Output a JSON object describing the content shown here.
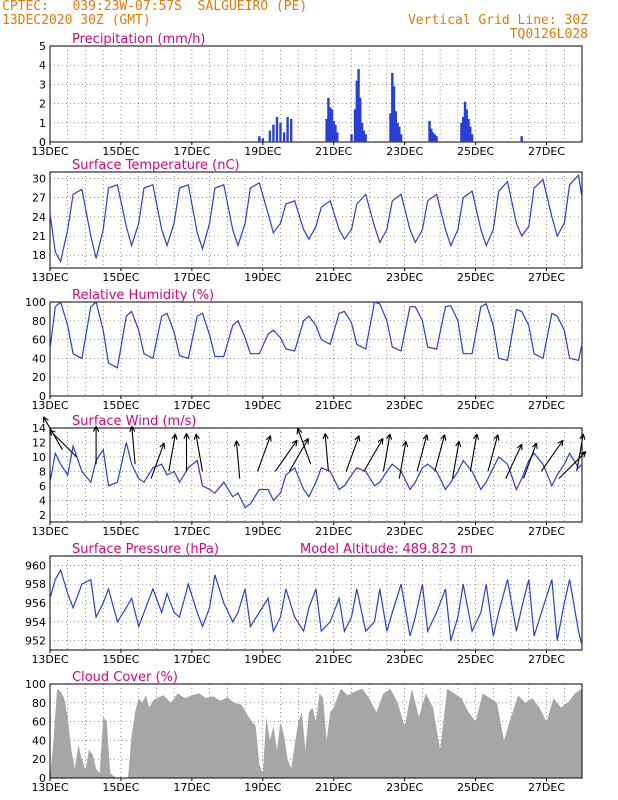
{
  "header": {
    "line1_left": "CPTEC:   039:23W-07:57S  SALGUEIRO (PE)",
    "line2_left": "13DEC2020 30Z (GMT)",
    "line1_right": "Vertical Grid Line: 30Z",
    "line2_right": "TQ0126L028"
  },
  "colors": {
    "accent": "#e8780a",
    "title": "#e0007a",
    "series": "#2a3fd6",
    "cloud": "#a6a6a6",
    "grid": "#555555"
  },
  "chart_data": [
    {
      "id": "precip",
      "type": "bar",
      "title": "Precipitation (mm/h)",
      "ylim": [
        0,
        5
      ],
      "yticks": [
        0,
        1,
        2,
        3,
        4,
        5
      ],
      "xlim": [
        13,
        28
      ],
      "xticks": [
        "13DEC",
        "15DEC",
        "17DEC",
        "19DEC",
        "21DEC",
        "23DEC",
        "25DEC",
        "27DEC"
      ],
      "x": [
        18.9,
        19.0,
        19.2,
        19.3,
        19.4,
        19.5,
        19.6,
        19.7,
        19.8,
        20.8,
        20.85,
        20.9,
        20.95,
        21.0,
        21.05,
        21.1,
        21.5,
        21.6,
        21.65,
        21.7,
        21.75,
        21.8,
        21.85,
        21.9,
        22.6,
        22.65,
        22.7,
        22.75,
        22.8,
        22.85,
        22.9,
        23.7,
        23.75,
        23.8,
        23.85,
        23.9,
        24.6,
        24.65,
        24.7,
        24.75,
        24.8,
        24.85,
        24.9,
        26.3
      ],
      "values": [
        0.3,
        0.2,
        0.6,
        0.9,
        1.3,
        1.0,
        0.5,
        1.3,
        1.2,
        1.2,
        2.3,
        1.8,
        1.7,
        1.1,
        0.9,
        0.5,
        0.4,
        1.7,
        3.2,
        3.8,
        2.3,
        1.0,
        0.6,
        0.4,
        1.5,
        3.6,
        2.9,
        1.6,
        1.0,
        0.8,
        0.4,
        1.1,
        0.7,
        0.5,
        0.4,
        0.3,
        1.0,
        1.3,
        2.1,
        1.7,
        1.2,
        0.8,
        0.4,
        0.3
      ]
    },
    {
      "id": "temp",
      "type": "line",
      "title": "Surface Temperature (nC)",
      "ylim": [
        16,
        31
      ],
      "yticks": [
        18,
        21,
        24,
        27,
        30
      ],
      "xlim": [
        13,
        28
      ],
      "xticks": [
        "13DEC",
        "15DEC",
        "17DEC",
        "19DEC",
        "21DEC",
        "23DEC",
        "25DEC",
        "27DEC"
      ],
      "x": [
        13.0,
        13.15,
        13.3,
        13.5,
        13.65,
        13.9,
        14.15,
        14.3,
        14.5,
        14.65,
        14.9,
        15.15,
        15.3,
        15.5,
        15.65,
        15.9,
        16.15,
        16.3,
        16.5,
        16.65,
        16.9,
        17.15,
        17.3,
        17.5,
        17.65,
        17.9,
        18.15,
        18.3,
        18.5,
        18.65,
        18.9,
        19.15,
        19.3,
        19.5,
        19.65,
        19.9,
        20.15,
        20.3,
        20.5,
        20.65,
        20.9,
        21.15,
        21.3,
        21.5,
        21.65,
        21.9,
        22.15,
        22.3,
        22.5,
        22.65,
        22.9,
        23.15,
        23.3,
        23.5,
        23.65,
        23.9,
        24.15,
        24.3,
        24.5,
        24.65,
        24.9,
        25.15,
        25.3,
        25.5,
        25.65,
        25.9,
        26.15,
        26.3,
        26.5,
        26.65,
        26.9,
        27.15,
        27.3,
        27.5,
        27.65,
        27.9,
        28.0
      ],
      "values": [
        24.5,
        18.5,
        17.0,
        22.0,
        27.5,
        28.3,
        21.0,
        17.5,
        22.0,
        28.5,
        29.0,
        22.5,
        19.5,
        23.0,
        28.5,
        29.0,
        22.0,
        19.5,
        23.0,
        28.5,
        29.0,
        21.5,
        19.0,
        23.0,
        28.5,
        29.0,
        22.0,
        19.5,
        23.0,
        28.5,
        29.3,
        24.5,
        21.5,
        23.0,
        26.0,
        26.5,
        22.0,
        20.5,
        22.5,
        25.5,
        26.5,
        22.0,
        20.5,
        22.0,
        26.0,
        27.5,
        22.5,
        20.0,
        22.0,
        26.5,
        27.5,
        22.0,
        20.0,
        22.0,
        26.5,
        27.5,
        22.0,
        19.5,
        22.0,
        27.0,
        28.0,
        22.0,
        19.5,
        22.0,
        28.0,
        29.5,
        23.0,
        21.0,
        22.5,
        28.5,
        29.8,
        24.0,
        21.0,
        23.0,
        29.0,
        30.5,
        27.0
      ]
    },
    {
      "id": "rh",
      "type": "line",
      "title": "Relative Humidity (%)",
      "ylim": [
        0,
        100
      ],
      "yticks": [
        0,
        20,
        40,
        60,
        80,
        100
      ],
      "xlim": [
        13,
        28
      ],
      "xticks": [
        "13DEC",
        "15DEC",
        "17DEC",
        "19DEC",
        "21DEC",
        "23DEC",
        "25DEC",
        "27DEC"
      ],
      "x": [
        13.0,
        13.15,
        13.3,
        13.5,
        13.65,
        13.9,
        14.15,
        14.3,
        14.5,
        14.65,
        14.9,
        15.15,
        15.3,
        15.5,
        15.65,
        15.9,
        16.15,
        16.3,
        16.5,
        16.65,
        16.9,
        17.15,
        17.3,
        17.5,
        17.65,
        17.9,
        18.15,
        18.3,
        18.5,
        18.65,
        18.9,
        19.15,
        19.3,
        19.5,
        19.65,
        19.9,
        20.15,
        20.3,
        20.5,
        20.65,
        20.9,
        21.15,
        21.3,
        21.5,
        21.65,
        21.9,
        22.15,
        22.3,
        22.5,
        22.65,
        22.9,
        23.15,
        23.3,
        23.5,
        23.65,
        23.9,
        24.15,
        24.3,
        24.5,
        24.65,
        24.9,
        25.15,
        25.3,
        25.5,
        25.65,
        25.9,
        26.15,
        26.3,
        26.5,
        26.65,
        26.9,
        27.15,
        27.3,
        27.5,
        27.65,
        27.9,
        28.0
      ],
      "values": [
        50,
        95,
        100,
        75,
        45,
        40,
        95,
        100,
        70,
        35,
        30,
        85,
        90,
        70,
        45,
        40,
        85,
        88,
        68,
        43,
        40,
        85,
        88,
        65,
        42,
        42,
        75,
        80,
        62,
        45,
        45,
        66,
        70,
        62,
        50,
        48,
        80,
        85,
        75,
        60,
        55,
        88,
        90,
        78,
        55,
        50,
        100,
        98,
        80,
        52,
        48,
        95,
        95,
        80,
        52,
        50,
        95,
        96,
        80,
        45,
        45,
        95,
        98,
        75,
        40,
        38,
        92,
        90,
        75,
        45,
        40,
        88,
        85,
        70,
        40,
        38,
        55
      ]
    },
    {
      "id": "wind",
      "type": "line",
      "title": "Surface Wind (m/s)",
      "ylim": [
        1,
        14
      ],
      "yticks": [
        2,
        4,
        6,
        8,
        10,
        12,
        14
      ],
      "xlim": [
        13,
        28
      ],
      "xticks": [
        "13DEC",
        "15DEC",
        "17DEC",
        "19DEC",
        "21DEC",
        "23DEC",
        "25DEC",
        "27DEC"
      ],
      "x": [
        13.0,
        13.15,
        13.3,
        13.5,
        13.65,
        13.9,
        14.15,
        14.3,
        14.5,
        14.65,
        14.9,
        15.15,
        15.3,
        15.5,
        15.65,
        15.9,
        16.15,
        16.3,
        16.5,
        16.65,
        16.9,
        17.15,
        17.3,
        17.5,
        17.65,
        17.9,
        18.15,
        18.3,
        18.5,
        18.65,
        18.9,
        19.15,
        19.3,
        19.5,
        19.65,
        19.9,
        20.15,
        20.3,
        20.5,
        20.65,
        20.9,
        21.15,
        21.3,
        21.5,
        21.65,
        21.9,
        22.15,
        22.3,
        22.5,
        22.65,
        22.9,
        23.15,
        23.3,
        23.5,
        23.65,
        23.9,
        24.15,
        24.3,
        24.5,
        24.65,
        24.9,
        25.15,
        25.3,
        25.5,
        25.65,
        25.9,
        26.15,
        26.3,
        26.5,
        26.65,
        26.9,
        27.15,
        27.3,
        27.5,
        27.65,
        27.9,
        28.0
      ],
      "values": [
        6.5,
        10.5,
        9.0,
        7.5,
        11.5,
        8.0,
        6.5,
        9.5,
        11.0,
        6.0,
        6.5,
        12.0,
        9.0,
        7.0,
        6.5,
        8.5,
        9.0,
        7.5,
        8.0,
        6.5,
        8.5,
        9.5,
        6.0,
        5.5,
        5.0,
        6.5,
        4.5,
        5.0,
        3.0,
        3.5,
        5.5,
        5.5,
        4.0,
        5.0,
        7.5,
        8.5,
        5.5,
        4.5,
        6.5,
        8.5,
        8.0,
        5.5,
        6.0,
        7.5,
        8.5,
        8.0,
        6.0,
        6.5,
        8.0,
        9.0,
        8.0,
        5.5,
        6.5,
        8.5,
        9.0,
        8.0,
        5.5,
        6.5,
        8.0,
        9.5,
        8.0,
        5.5,
        6.5,
        8.5,
        10.0,
        9.0,
        5.5,
        7.0,
        9.5,
        10.5,
        9.0,
        6.0,
        7.5,
        9.0,
        10.5,
        8.5,
        9.0
      ]
    },
    {
      "id": "pressure",
      "type": "line",
      "title": "Surface Pressure (hPa)",
      "annotation": "Model Altitude: 489.823  m",
      "ylim": [
        951,
        961
      ],
      "yticks": [
        952,
        954,
        956,
        958,
        960
      ],
      "xlim": [
        13,
        28
      ],
      "xticks": [
        "13DEC",
        "15DEC",
        "17DEC",
        "19DEC",
        "21DEC",
        "23DEC",
        "25DEC",
        "27DEC"
      ],
      "x": [
        13.0,
        13.15,
        13.3,
        13.5,
        13.65,
        13.9,
        14.15,
        14.3,
        14.5,
        14.65,
        14.9,
        15.15,
        15.3,
        15.5,
        15.65,
        15.9,
        16.15,
        16.3,
        16.5,
        16.65,
        16.9,
        17.15,
        17.3,
        17.5,
        17.65,
        17.9,
        18.15,
        18.3,
        18.5,
        18.65,
        18.9,
        19.15,
        19.3,
        19.5,
        19.65,
        19.9,
        20.15,
        20.3,
        20.5,
        20.65,
        20.9,
        21.15,
        21.3,
        21.5,
        21.65,
        21.9,
        22.15,
        22.3,
        22.5,
        22.65,
        22.9,
        23.15,
        23.3,
        23.5,
        23.65,
        23.9,
        24.15,
        24.3,
        24.5,
        24.65,
        24.9,
        25.15,
        25.3,
        25.5,
        25.65,
        25.9,
        26.15,
        26.3,
        26.5,
        26.65,
        26.9,
        27.15,
        27.3,
        27.5,
        27.65,
        27.9,
        28.0
      ],
      "values": [
        956.5,
        958.5,
        959.5,
        957.0,
        955.5,
        958.0,
        958.5,
        954.5,
        956.0,
        957.5,
        954.0,
        955.5,
        956.5,
        953.5,
        955.0,
        957.5,
        955.0,
        957.0,
        955.0,
        954.5,
        958.0,
        955.0,
        953.5,
        955.5,
        959.0,
        956.0,
        954.0,
        955.0,
        957.5,
        953.5,
        955.0,
        956.5,
        953.0,
        954.5,
        957.5,
        954.5,
        953.0,
        955.5,
        957.5,
        953.0,
        954.0,
        956.5,
        953.0,
        954.5,
        957.5,
        953.0,
        954.0,
        957.5,
        953.0,
        955.0,
        958.0,
        952.5,
        954.5,
        958.0,
        953.0,
        955.0,
        957.5,
        952.0,
        954.5,
        958.0,
        953.0,
        955.0,
        958.0,
        952.5,
        955.0,
        958.5,
        953.0,
        955.5,
        958.5,
        952.5,
        955.5,
        958.5,
        952.0,
        956.0,
        958.5,
        953.0,
        951.5
      ]
    },
    {
      "id": "cloud",
      "type": "area",
      "title": "Cloud Cover (%)",
      "ylim": [
        0,
        100
      ],
      "yticks": [
        0,
        20,
        40,
        60,
        80,
        100
      ],
      "xlim": [
        13,
        28
      ],
      "xticks": [
        "13DEC",
        "15DEC",
        "17DEC",
        "19DEC",
        "21DEC",
        "23DEC",
        "25DEC",
        "27DEC"
      ],
      "x": [
        13.0,
        13.1,
        13.2,
        13.3,
        13.4,
        13.5,
        13.6,
        13.7,
        13.8,
        13.9,
        14.0,
        14.1,
        14.2,
        14.3,
        14.4,
        14.5,
        14.6,
        14.7,
        14.8,
        14.9,
        15.0,
        15.1,
        15.2,
        15.3,
        15.4,
        15.5,
        15.6,
        15.7,
        15.8,
        15.9,
        16.0,
        16.2,
        16.4,
        16.6,
        16.8,
        17.0,
        17.2,
        17.4,
        17.6,
        17.8,
        18.0,
        18.2,
        18.4,
        18.6,
        18.8,
        18.9,
        19.0,
        19.1,
        19.2,
        19.3,
        19.4,
        19.5,
        19.6,
        19.7,
        19.8,
        19.9,
        20.0,
        20.1,
        20.2,
        20.3,
        20.4,
        20.5,
        20.6,
        20.7,
        20.8,
        20.9,
        21.0,
        21.2,
        21.4,
        21.6,
        21.8,
        22.0,
        22.2,
        22.4,
        22.6,
        22.8,
        23.0,
        23.2,
        23.4,
        23.6,
        23.8,
        24.0,
        24.2,
        24.4,
        24.6,
        24.8,
        25.0,
        25.2,
        25.4,
        25.6,
        25.8,
        26.0,
        26.2,
        26.4,
        26.6,
        26.8,
        27.0,
        27.2,
        27.4,
        27.6,
        27.8,
        28.0
      ],
      "values": [
        0,
        40,
        95,
        92,
        85,
        65,
        30,
        10,
        35,
        20,
        8,
        30,
        25,
        10,
        5,
        65,
        60,
        5,
        2,
        0,
        0,
        0,
        0,
        45,
        70,
        85,
        80,
        88,
        75,
        82,
        85,
        88,
        80,
        90,
        85,
        88,
        90,
        85,
        87,
        82,
        86,
        80,
        78,
        65,
        55,
        15,
        5,
        65,
        40,
        55,
        30,
        60,
        45,
        20,
        10,
        35,
        60,
        70,
        30,
        70,
        75,
        60,
        90,
        85,
        40,
        70,
        75,
        95,
        88,
        92,
        95,
        85,
        70,
        90,
        95,
        80,
        55,
        95,
        65,
        90,
        75,
        30,
        95,
        90,
        85,
        70,
        60,
        90,
        85,
        80,
        40,
        65,
        88,
        80,
        85,
        75,
        60,
        85,
        75,
        80,
        90,
        95
      ]
    }
  ],
  "wind_arrows": {
    "x": [
      13.35,
      13.75,
      14.3,
      15.4,
      15.85,
      16.35,
      16.85,
      17.3,
      18.35,
      18.85,
      19.35,
      19.75,
      20.35,
      20.85,
      21.35,
      21.85,
      22.4,
      22.85,
      23.35,
      23.85,
      24.35,
      24.85,
      25.35,
      25.85,
      26.35,
      26.85,
      27.35,
      27.85
    ],
    "speed": [
      11,
      10,
      9,
      9,
      7,
      8,
      8,
      8,
      7,
      8,
      8,
      8,
      9,
      8,
      8,
      8,
      8,
      7,
      8,
      8,
      7,
      8,
      8,
      7,
      7,
      8,
      7,
      8
    ],
    "direction_deg": [
      120,
      135,
      90,
      95,
      70,
      80,
      90,
      100,
      95,
      70,
      55,
      60,
      110,
      95,
      70,
      60,
      80,
      80,
      75,
      75,
      80,
      80,
      75,
      65,
      70,
      55,
      45,
      80
    ]
  }
}
